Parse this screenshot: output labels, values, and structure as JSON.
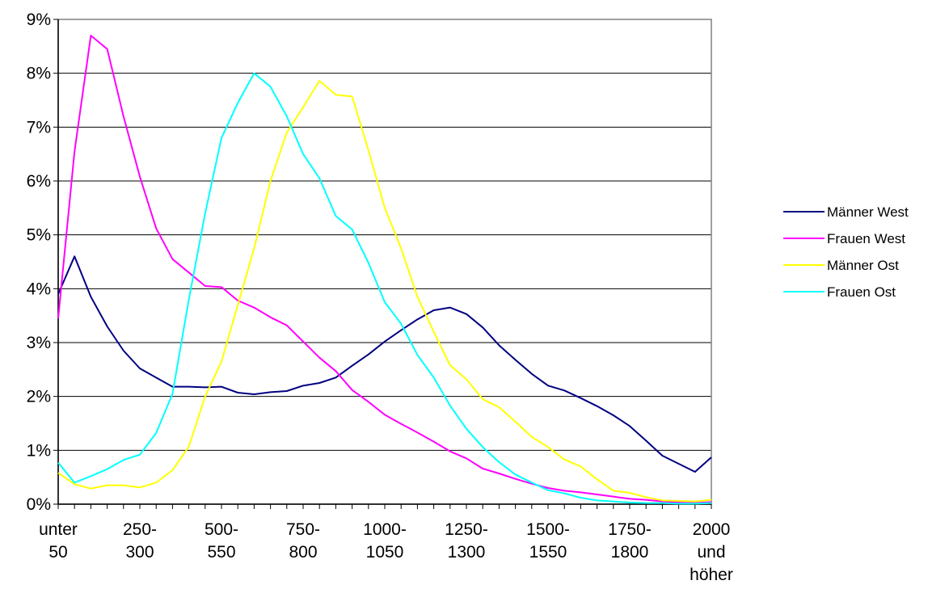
{
  "chart_data": {
    "type": "line",
    "title": "",
    "xlabel": "",
    "ylabel": "",
    "ylim": [
      0,
      9
    ],
    "y_tick_values": [
      0,
      1,
      2,
      3,
      4,
      5,
      6,
      7,
      8,
      9
    ],
    "y_tick_labels": [
      "0%",
      "1%",
      "2%",
      "3%",
      "4%",
      "5%",
      "6%",
      "7%",
      "8%",
      "9%"
    ],
    "x_tick_labels": [
      [
        "unter",
        "50"
      ],
      [
        "250-",
        "300"
      ],
      [
        "500-",
        "550"
      ],
      [
        "750-",
        "800"
      ],
      [
        "1000-",
        "1050"
      ],
      [
        "1250-",
        "1300"
      ],
      [
        "1500-",
        "1550"
      ],
      [
        "1750-",
        "1800"
      ],
      [
        "2000",
        "und",
        "höher"
      ]
    ],
    "grid": "horizontal",
    "legend_position": "right",
    "series": [
      {
        "name": "Männer West",
        "color": "#000080",
        "values": [
          3.9,
          4.6,
          3.85,
          3.3,
          2.85,
          2.52,
          2.35,
          2.18,
          2.18,
          2.17,
          2.18,
          2.07,
          2.04,
          2.08,
          2.1,
          2.2,
          2.25,
          2.35,
          2.57,
          2.78,
          3.02,
          3.23,
          3.43,
          3.6,
          3.65,
          3.53,
          3.28,
          2.95,
          2.68,
          2.42,
          2.2,
          2.11,
          1.97,
          1.82,
          1.65,
          1.45,
          1.18,
          0.9,
          0.75,
          0.6,
          0.87
        ]
      },
      {
        "name": "Frauen West",
        "color": "#ff00ff",
        "values": [
          3.45,
          6.55,
          8.7,
          8.45,
          7.2,
          6.08,
          5.12,
          4.55,
          4.3,
          4.05,
          4.03,
          3.78,
          3.65,
          3.47,
          3.32,
          3.02,
          2.72,
          2.47,
          2.12,
          1.9,
          1.66,
          1.49,
          1.33,
          1.16,
          0.98,
          0.85,
          0.66,
          0.57,
          0.47,
          0.38,
          0.3,
          0.25,
          0.22,
          0.18,
          0.14,
          0.1,
          0.08,
          0.05,
          0.03,
          0.02,
          0.04
        ]
      },
      {
        "name": "Männer Ost",
        "color": "#ffff00",
        "values": [
          0.58,
          0.37,
          0.29,
          0.35,
          0.35,
          0.31,
          0.4,
          0.63,
          1.07,
          2.0,
          2.65,
          3.7,
          4.75,
          6.0,
          6.9,
          7.37,
          7.86,
          7.6,
          7.57,
          6.57,
          5.5,
          4.75,
          3.85,
          3.2,
          2.58,
          2.32,
          1.95,
          1.8,
          1.53,
          1.25,
          1.06,
          0.83,
          0.7,
          0.46,
          0.25,
          0.21,
          0.13,
          0.07,
          0.06,
          0.05,
          0.08
        ]
      },
      {
        "name": "Frauen Ost",
        "color": "#00ffff",
        "values": [
          0.77,
          0.4,
          0.52,
          0.65,
          0.82,
          0.92,
          1.32,
          2.05,
          3.8,
          5.4,
          6.8,
          7.45,
          8.0,
          7.75,
          7.2,
          6.5,
          6.05,
          5.35,
          5.1,
          4.48,
          3.75,
          3.35,
          2.77,
          2.35,
          1.83,
          1.4,
          1.06,
          0.78,
          0.55,
          0.4,
          0.26,
          0.2,
          0.12,
          0.07,
          0.05,
          0.03,
          0.02,
          0.02,
          0.01,
          0.01,
          0.02
        ]
      }
    ]
  }
}
